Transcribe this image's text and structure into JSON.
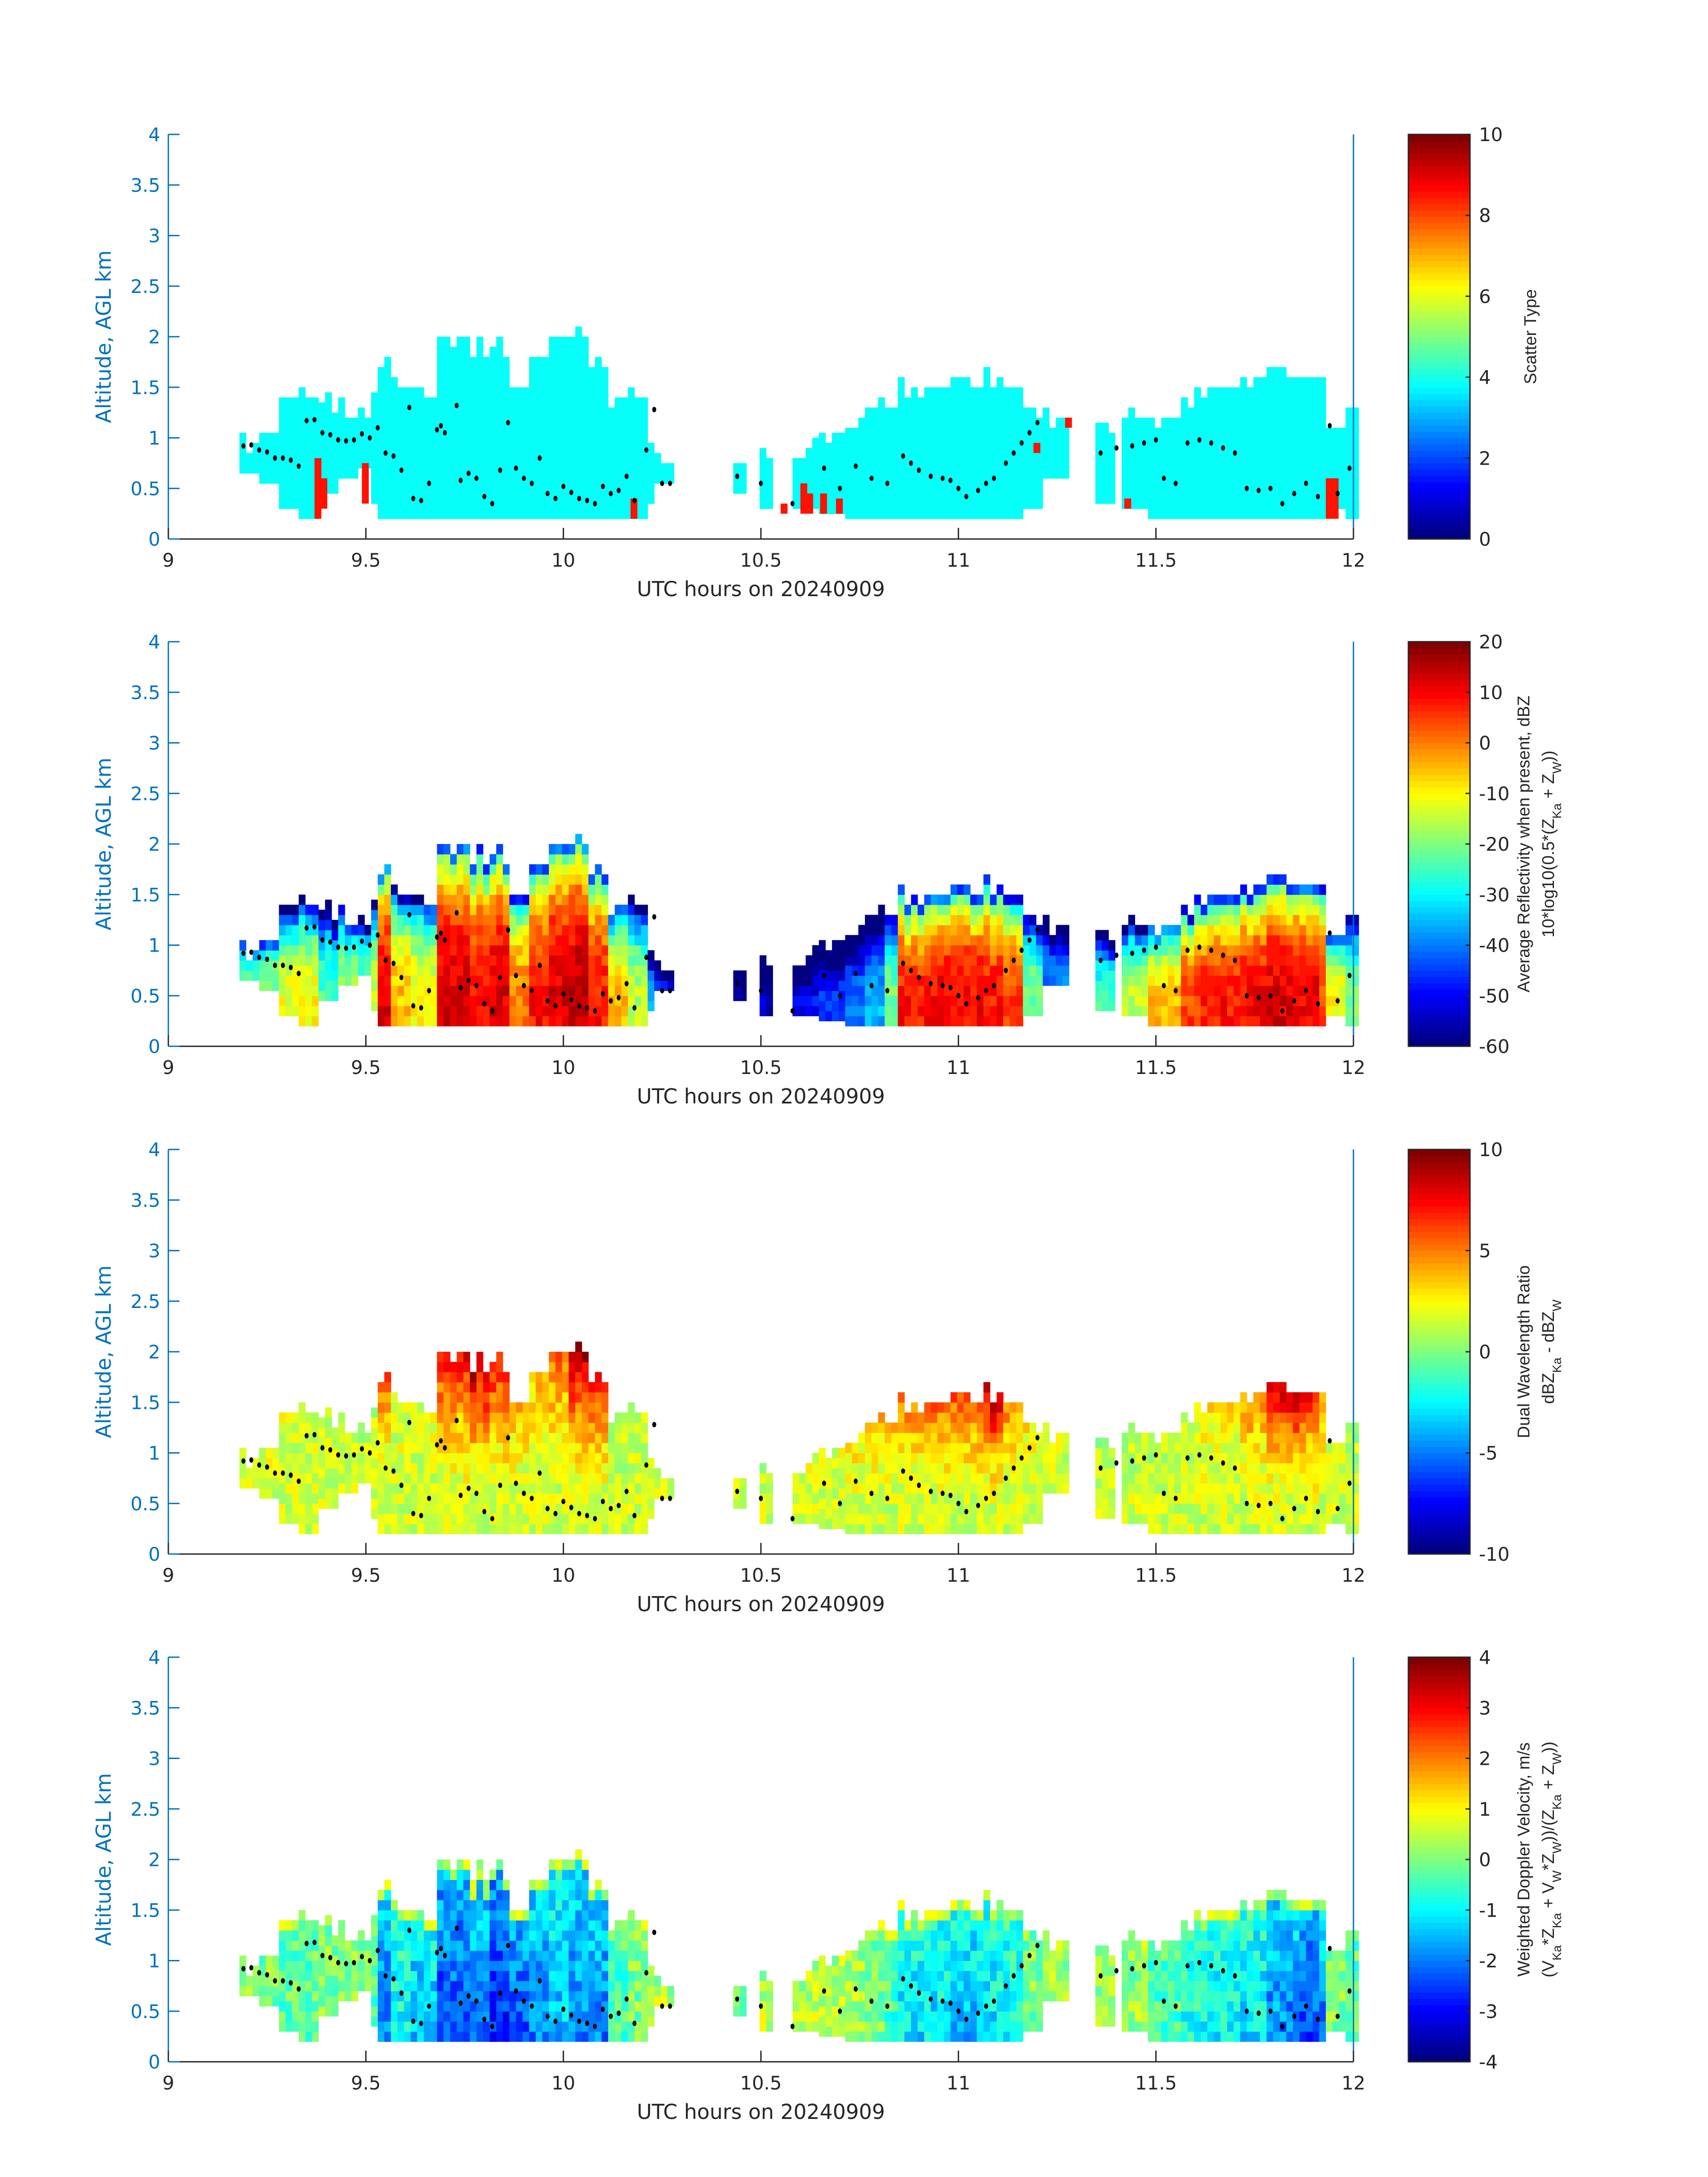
{
  "chart_data": [
    {
      "type": "heatmap",
      "id": "scatter",
      "xlabel": "UTC hours on 20240909",
      "ylabel": "Altitude, AGL km",
      "xlim": [
        9,
        12
      ],
      "ylim": [
        0,
        4
      ],
      "xticks": [
        "9",
        "9.5",
        "10",
        "10.5",
        "11",
        "11.5",
        "12"
      ],
      "yticks": [
        "0",
        "0.5",
        "1",
        "1.5",
        "2",
        "2.5",
        "3",
        "3.5",
        "4"
      ],
      "colorbar": {
        "label": [
          "Scatter Type"
        ],
        "range": [
          0,
          10
        ],
        "ticks": [
          "0",
          "2",
          "4",
          "6",
          "8",
          "10"
        ]
      }
    },
    {
      "type": "heatmap",
      "id": "dbz",
      "xlabel": "UTC hours on 20240909",
      "ylabel": "Altitude, AGL km",
      "xlim": [
        9,
        12
      ],
      "ylim": [
        0,
        4
      ],
      "xticks": [
        "9",
        "9.5",
        "10",
        "10.5",
        "11",
        "11.5",
        "12"
      ],
      "yticks": [
        "0",
        "0.5",
        "1",
        "1.5",
        "2",
        "2.5",
        "3",
        "3.5",
        "4"
      ],
      "colorbar": {
        "label": [
          "Average Reflectivity when present, dBZ",
          "10*log10(0.5*(Z_Ka + Z_W))"
        ],
        "range": [
          -60,
          20
        ],
        "ticks": [
          "-60",
          "-50",
          "-40",
          "-30",
          "-20",
          "-10",
          "0",
          "10",
          "20"
        ]
      }
    },
    {
      "type": "heatmap",
      "id": "dwr",
      "xlabel": "UTC hours on 20240909",
      "ylabel": "Altitude, AGL km",
      "xlim": [
        9,
        12
      ],
      "ylim": [
        0,
        4
      ],
      "xticks": [
        "9",
        "9.5",
        "10",
        "10.5",
        "11",
        "11.5",
        "12"
      ],
      "yticks": [
        "0",
        "0.5",
        "1",
        "1.5",
        "2",
        "2.5",
        "3",
        "3.5",
        "4"
      ],
      "colorbar": {
        "label": [
          "Dual Wavelength Ratio",
          "dBZ_Ka - dBZ_W"
        ],
        "range": [
          -10,
          10
        ],
        "ticks": [
          "-10",
          "-5",
          "0",
          "5",
          "10"
        ]
      }
    },
    {
      "type": "heatmap",
      "id": "vel",
      "xlabel": "UTC hours on 20240909",
      "ylabel": "Altitude, AGL km",
      "xlim": [
        9,
        12
      ],
      "ylim": [
        0,
        4
      ],
      "xticks": [
        "9",
        "9.5",
        "10",
        "10.5",
        "11",
        "11.5",
        "12"
      ],
      "yticks": [
        "0",
        "0.5",
        "1",
        "1.5",
        "2",
        "2.5",
        "3",
        "3.5",
        "4"
      ],
      "colorbar": {
        "label": [
          "Weighted Doppler Velocity, m/s",
          "(V_Ka*Z_Ka + V_W*Z_W))/(Z_Ka + Z_W))"
        ],
        "range": [
          -4,
          4
        ],
        "ticks": [
          "-4",
          "-3",
          "-2",
          "-1",
          "0",
          "1",
          "2",
          "3",
          "4"
        ]
      }
    }
  ],
  "profile_columns_fields": [
    "time_h",
    "base_km",
    "top_km",
    "dbz_core",
    "dwr_core",
    "vel_core"
  ],
  "profile_columns": [
    [
      9.18,
      0.65,
      0.95,
      -25,
      1.5,
      0
    ],
    [
      9.22,
      0.55,
      1.05,
      -20,
      2,
      0
    ],
    [
      9.27,
      0.3,
      1.25,
      -12,
      2,
      -0.3
    ],
    [
      9.32,
      0.2,
      1.4,
      -10,
      2,
      -0.3
    ],
    [
      9.37,
      0.45,
      1.3,
      -25,
      1.5,
      0
    ],
    [
      9.42,
      0.6,
      1.3,
      -20,
      1,
      0
    ],
    [
      9.47,
      0.7,
      1.15,
      -25,
      1,
      0
    ],
    [
      9.5,
      0.35,
      1.4,
      -15,
      1,
      -0.5
    ],
    [
      9.53,
      0.2,
      1.8,
      12,
      6,
      -2
    ],
    [
      9.56,
      0.2,
      1.5,
      -5,
      2,
      -1
    ],
    [
      9.6,
      0.2,
      1.5,
      -10,
      2,
      -1.5
    ],
    [
      9.67,
      0.2,
      2.0,
      12,
      8,
      -2.5
    ],
    [
      9.75,
      0.2,
      1.85,
      10,
      9,
      -2
    ],
    [
      9.8,
      0.2,
      1.9,
      12,
      8,
      -2.8
    ],
    [
      9.86,
      0.2,
      1.5,
      0,
      4,
      -2.5
    ],
    [
      9.9,
      0.2,
      1.8,
      8,
      4,
      -2
    ],
    [
      9.95,
      0.2,
      2.0,
      12,
      6,
      -1.5
    ],
    [
      10.0,
      0.2,
      2.1,
      14,
      10,
      -2
    ],
    [
      10.05,
      0.2,
      1.7,
      8,
      8,
      -2
    ],
    [
      10.1,
      0.2,
      1.4,
      -5,
      1,
      -0.5
    ],
    [
      10.15,
      0.2,
      1.35,
      -15,
      1,
      0
    ],
    [
      10.2,
      0.35,
      1.0,
      -35,
      2,
      0.5
    ],
    [
      10.22,
      0.55,
      0.7,
      -50,
      2,
      0.5
    ],
    [
      10.28,
      0,
      0,
      0,
      0,
      0
    ],
    [
      10.43,
      0.45,
      0.75,
      -55,
      2,
      0
    ],
    [
      10.46,
      0,
      0,
      0,
      0,
      0
    ],
    [
      10.49,
      0.3,
      0.8,
      -55,
      1,
      0.5
    ],
    [
      10.53,
      0,
      0,
      0,
      0,
      0
    ],
    [
      10.58,
      0.3,
      0.85,
      -50,
      2,
      0.5
    ],
    [
      10.63,
      0.25,
      1.0,
      -45,
      2,
      0.5
    ],
    [
      10.7,
      0.2,
      1.1,
      -40,
      3,
      0.3
    ],
    [
      10.75,
      0.2,
      1.25,
      -35,
      4,
      0
    ],
    [
      10.8,
      0.2,
      1.3,
      -20,
      4,
      -0.5
    ],
    [
      10.84,
      0.2,
      1.45,
      8,
      5,
      -1.2
    ],
    [
      10.92,
      0.2,
      1.5,
      10,
      6,
      -1.2
    ],
    [
      10.98,
      0.2,
      1.55,
      10,
      6,
      -1.5
    ],
    [
      11.05,
      0.2,
      1.55,
      8,
      9,
      -1.2
    ],
    [
      11.1,
      0.2,
      1.45,
      5,
      5,
      -1
    ],
    [
      11.15,
      0.3,
      1.3,
      -20,
      3,
      0
    ],
    [
      11.2,
      0.6,
      1.15,
      -40,
      2,
      0.3
    ],
    [
      11.28,
      0,
      0,
      0,
      0,
      0
    ],
    [
      11.34,
      0.35,
      1.0,
      -25,
      1,
      0.3
    ],
    [
      11.38,
      0,
      0,
      0,
      0,
      0
    ],
    [
      11.4,
      0.3,
      1.15,
      -15,
      1,
      0.2
    ],
    [
      11.47,
      0.2,
      1.2,
      -5,
      1,
      -0.5
    ],
    [
      11.55,
      0.2,
      1.35,
      5,
      2,
      -0.8
    ],
    [
      11.6,
      0.2,
      1.45,
      8,
      3,
      -1
    ],
    [
      11.7,
      0.2,
      1.55,
      10,
      5,
      -1.2
    ],
    [
      11.78,
      0.2,
      1.65,
      12,
      9,
      -2
    ],
    [
      11.85,
      0.2,
      1.6,
      10,
      8,
      -2.5
    ],
    [
      11.9,
      0.2,
      1.55,
      5,
      4,
      -2
    ],
    [
      11.93,
      0.3,
      1.2,
      -10,
      2,
      0
    ],
    [
      11.97,
      0.2,
      1.3,
      -20,
      1,
      -0.3
    ],
    [
      12.0,
      0,
      0,
      0,
      0,
      0
    ]
  ],
  "scatter_type_default": 3.8,
  "scatter_type_high_cells": [
    [
      9.37,
      0.2,
      0.8,
      8.5
    ],
    [
      9.385,
      0.3,
      0.6,
      8.5
    ],
    [
      9.49,
      0.35,
      0.75,
      8.5
    ],
    [
      10.17,
      0.2,
      0.4,
      8.5
    ],
    [
      10.55,
      0.25,
      0.35,
      8.5
    ],
    [
      10.6,
      0.25,
      0.55,
      8.5
    ],
    [
      10.615,
      0.25,
      0.45,
      8.5
    ],
    [
      10.65,
      0.25,
      0.45,
      8.5
    ],
    [
      10.69,
      0.25,
      0.4,
      8.5
    ],
    [
      11.19,
      0.85,
      0.95,
      8.5
    ],
    [
      11.27,
      1.1,
      1.2,
      8.5
    ],
    [
      11.42,
      0.3,
      0.4,
      8.5
    ],
    [
      11.93,
      0.2,
      0.6,
      8.5
    ],
    [
      11.945,
      0.2,
      0.6,
      8.5
    ]
  ],
  "dots": [
    [
      9.19,
      0.92
    ],
    [
      9.21,
      0.93
    ],
    [
      9.23,
      0.88
    ],
    [
      9.25,
      0.86
    ],
    [
      9.27,
      0.8
    ],
    [
      9.29,
      0.8
    ],
    [
      9.31,
      0.78
    ],
    [
      9.33,
      0.72
    ],
    [
      9.35,
      1.17
    ],
    [
      9.37,
      1.18
    ],
    [
      9.39,
      1.05
    ],
    [
      9.41,
      1.03
    ],
    [
      9.43,
      0.98
    ],
    [
      9.45,
      0.97
    ],
    [
      9.47,
      0.98
    ],
    [
      9.49,
      1.04
    ],
    [
      9.51,
      1.0
    ],
    [
      9.53,
      1.1
    ],
    [
      9.55,
      0.85
    ],
    [
      9.57,
      0.82
    ],
    [
      9.59,
      0.68
    ],
    [
      9.61,
      1.3
    ],
    [
      9.62,
      0.4
    ],
    [
      9.64,
      0.38
    ],
    [
      9.66,
      0.55
    ],
    [
      9.68,
      1.08
    ],
    [
      9.69,
      1.12
    ],
    [
      9.7,
      1.05
    ],
    [
      9.73,
      1.32
    ],
    [
      9.74,
      0.58
    ],
    [
      9.76,
      0.65
    ],
    [
      9.78,
      0.6
    ],
    [
      9.8,
      0.42
    ],
    [
      9.82,
      0.35
    ],
    [
      9.84,
      0.68
    ],
    [
      9.86,
      1.15
    ],
    [
      9.88,
      0.7
    ],
    [
      9.9,
      0.6
    ],
    [
      9.92,
      0.55
    ],
    [
      9.94,
      0.8
    ],
    [
      9.96,
      0.45
    ],
    [
      9.98,
      0.4
    ],
    [
      10.0,
      0.52
    ],
    [
      10.02,
      0.46
    ],
    [
      10.04,
      0.4
    ],
    [
      10.06,
      0.38
    ],
    [
      10.08,
      0.35
    ],
    [
      10.1,
      0.52
    ],
    [
      10.12,
      0.45
    ],
    [
      10.14,
      0.48
    ],
    [
      10.16,
      0.62
    ],
    [
      10.18,
      0.38
    ],
    [
      10.21,
      0.88
    ],
    [
      10.23,
      1.28
    ],
    [
      10.25,
      0.55
    ],
    [
      10.27,
      0.55
    ],
    [
      10.44,
      0.62
    ],
    [
      10.5,
      0.55
    ],
    [
      10.58,
      0.35
    ],
    [
      10.66,
      0.7
    ],
    [
      10.7,
      0.5
    ],
    [
      10.74,
      0.72
    ],
    [
      10.78,
      0.6
    ],
    [
      10.82,
      0.55
    ],
    [
      10.86,
      0.82
    ],
    [
      10.88,
      0.75
    ],
    [
      10.9,
      0.68
    ],
    [
      10.93,
      0.62
    ],
    [
      10.96,
      0.6
    ],
    [
      10.98,
      0.58
    ],
    [
      11.0,
      0.5
    ],
    [
      11.02,
      0.42
    ],
    [
      11.05,
      0.48
    ],
    [
      11.07,
      0.55
    ],
    [
      11.09,
      0.6
    ],
    [
      11.12,
      0.75
    ],
    [
      11.14,
      0.85
    ],
    [
      11.16,
      0.95
    ],
    [
      11.18,
      1.05
    ],
    [
      11.2,
      1.15
    ],
    [
      11.36,
      0.85
    ],
    [
      11.4,
      0.9
    ],
    [
      11.44,
      0.92
    ],
    [
      11.47,
      0.95
    ],
    [
      11.5,
      0.98
    ],
    [
      11.52,
      0.6
    ],
    [
      11.55,
      0.55
    ],
    [
      11.58,
      0.95
    ],
    [
      11.61,
      0.98
    ],
    [
      11.64,
      0.95
    ],
    [
      11.67,
      0.9
    ],
    [
      11.7,
      0.85
    ],
    [
      11.73,
      0.5
    ],
    [
      11.76,
      0.48
    ],
    [
      11.79,
      0.5
    ],
    [
      11.82,
      0.35
    ],
    [
      11.85,
      0.45
    ],
    [
      11.88,
      0.55
    ],
    [
      11.91,
      0.42
    ],
    [
      11.94,
      1.12
    ],
    [
      11.96,
      0.45
    ],
    [
      11.99,
      0.7
    ]
  ],
  "colors": {
    "axis_blue": "#0072BD",
    "dot": "#000000"
  }
}
